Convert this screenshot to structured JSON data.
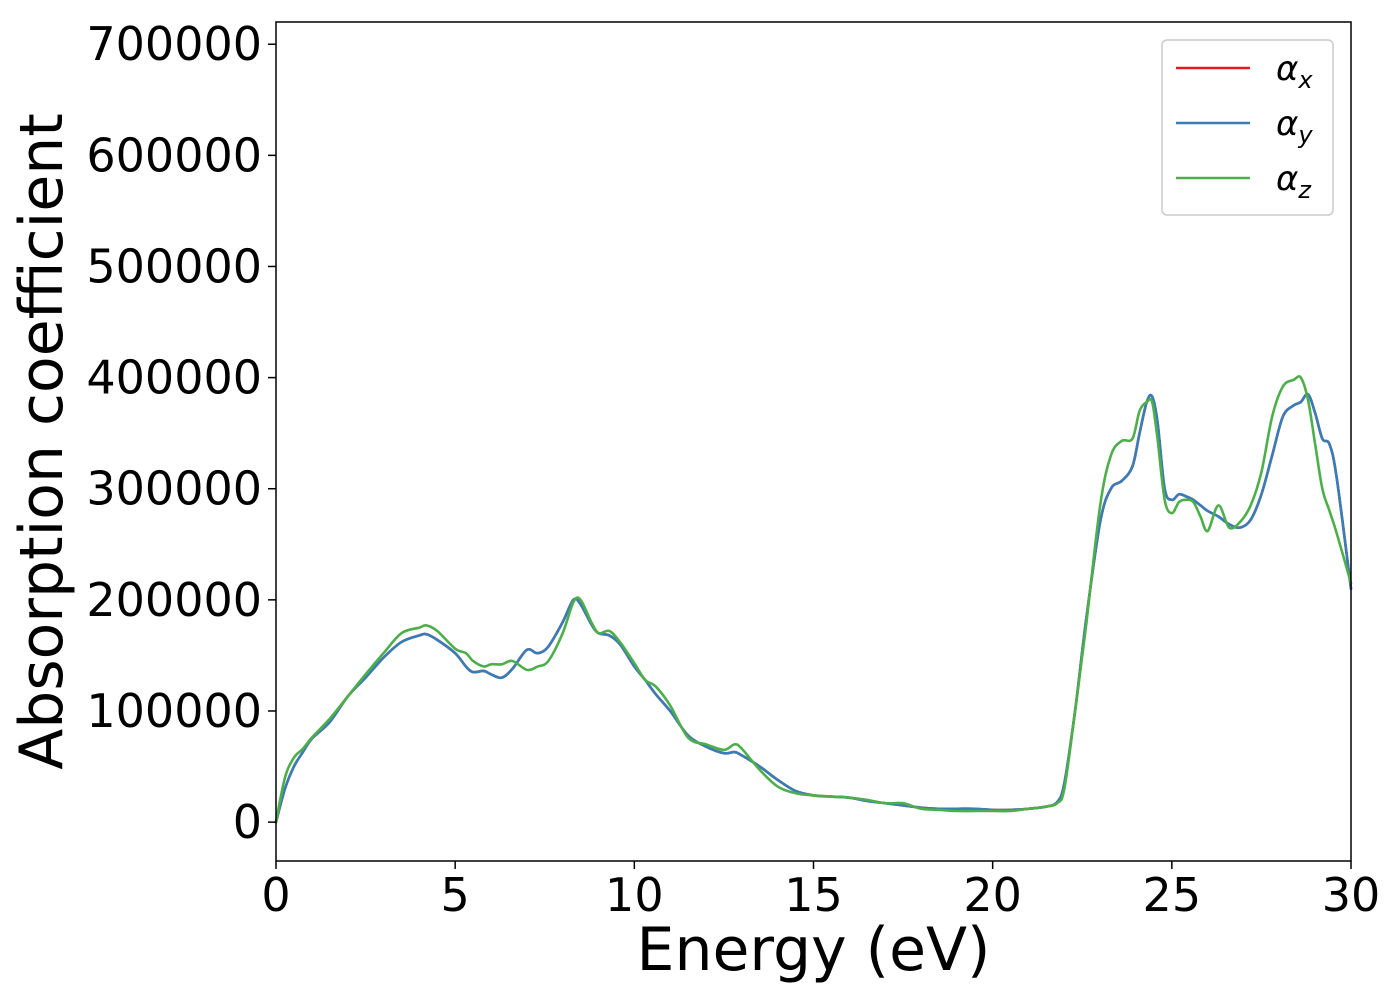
{
  "chart_data": {
    "type": "line",
    "title": "",
    "xlabel": "Energy (eV)",
    "ylabel": "Absorption coefficient",
    "xlim": [
      0,
      30
    ],
    "ylim": [
      -35000,
      720000
    ],
    "xticks": [
      0,
      5,
      10,
      15,
      20,
      25,
      30
    ],
    "yticks": [
      0,
      100000,
      200000,
      300000,
      400000,
      500000,
      600000,
      700000
    ],
    "xtick_labels": [
      "0",
      "5",
      "10",
      "15",
      "20",
      "25",
      "30"
    ],
    "ytick_labels": [
      "0",
      "100000",
      "200000",
      "300000",
      "400000",
      "500000",
      "600000",
      "700000"
    ],
    "grid": false,
    "legend_position": "top-right",
    "series": [
      {
        "name": "αx",
        "legend_symbol": "α",
        "legend_subscript": "x",
        "color": "#e41a1c",
        "x": [
          0,
          0.25,
          0.5,
          0.75,
          1,
          1.5,
          2,
          2.5,
          3,
          3.5,
          4,
          4.2,
          4.5,
          5,
          5.3,
          5.5,
          5.8,
          6,
          6.3,
          6.6,
          7,
          7.3,
          7.6,
          8,
          8.3,
          8.5,
          8.8,
          9,
          9.3,
          9.6,
          10,
          10.3,
          10.6,
          11,
          11.5,
          12,
          12.5,
          12.8,
          13,
          13.5,
          14,
          14.5,
          15,
          15.5,
          16,
          16.5,
          17,
          17.5,
          18,
          18.5,
          19,
          19.5,
          20,
          20.5,
          21,
          21.5,
          21.8,
          22,
          22.3,
          22.6,
          23,
          23.3,
          23.6,
          23.9,
          24.1,
          24.3,
          24.45,
          24.6,
          24.8,
          25,
          25.2,
          25.4,
          25.6,
          25.8,
          26,
          26.3,
          26.6,
          26.9,
          27.2,
          27.5,
          27.8,
          28.1,
          28.4,
          28.6,
          28.8,
          29,
          29.2,
          29.4,
          29.6,
          30
        ],
        "y": [
          0,
          30000,
          50000,
          63000,
          75000,
          90000,
          113000,
          130000,
          148000,
          162000,
          168000,
          169000,
          164000,
          152000,
          140000,
          135000,
          136000,
          133000,
          130000,
          138000,
          155000,
          152000,
          158000,
          180000,
          200000,
          196000,
          178000,
          170000,
          168000,
          160000,
          140000,
          128000,
          115000,
          100000,
          78000,
          68000,
          62000,
          63000,
          60000,
          50000,
          38000,
          28000,
          24000,
          23000,
          22000,
          19000,
          17000,
          15000,
          13000,
          12000,
          12000,
          12000,
          11000,
          11000,
          12000,
          14000,
          18000,
          35000,
          100000,
          180000,
          270000,
          300000,
          307000,
          320000,
          350000,
          378000,
          383000,
          360000,
          300000,
          290000,
          295000,
          293000,
          290000,
          285000,
          280000,
          275000,
          268000,
          265000,
          272000,
          295000,
          330000,
          365000,
          375000,
          378000,
          385000,
          368000,
          345000,
          340000,
          310000,
          210000
        ]
      },
      {
        "name": "αy",
        "legend_symbol": "α",
        "legend_subscript": "y",
        "color": "#377eb8",
        "x": [
          0,
          0.25,
          0.5,
          0.75,
          1,
          1.5,
          2,
          2.5,
          3,
          3.5,
          4,
          4.2,
          4.5,
          5,
          5.3,
          5.5,
          5.8,
          6,
          6.3,
          6.6,
          7,
          7.3,
          7.6,
          8,
          8.3,
          8.5,
          8.8,
          9,
          9.3,
          9.6,
          10,
          10.3,
          10.6,
          11,
          11.5,
          12,
          12.5,
          12.8,
          13,
          13.5,
          14,
          14.5,
          15,
          15.5,
          16,
          16.5,
          17,
          17.5,
          18,
          18.5,
          19,
          19.5,
          20,
          20.5,
          21,
          21.5,
          21.8,
          22,
          22.3,
          22.6,
          23,
          23.3,
          23.6,
          23.9,
          24.1,
          24.3,
          24.45,
          24.6,
          24.8,
          25,
          25.2,
          25.4,
          25.6,
          25.8,
          26,
          26.3,
          26.6,
          26.9,
          27.2,
          27.5,
          27.8,
          28.1,
          28.4,
          28.6,
          28.8,
          29,
          29.2,
          29.4,
          29.6,
          30
        ],
        "y": [
          0,
          30000,
          50000,
          63000,
          75000,
          90000,
          113000,
          130000,
          148000,
          162000,
          168000,
          169000,
          164000,
          152000,
          140000,
          135000,
          136000,
          133000,
          130000,
          138000,
          155000,
          152000,
          158000,
          180000,
          200000,
          196000,
          178000,
          170000,
          168000,
          160000,
          140000,
          128000,
          115000,
          100000,
          78000,
          68000,
          62000,
          63000,
          60000,
          50000,
          38000,
          28000,
          24000,
          23000,
          22000,
          19000,
          17000,
          15000,
          13000,
          12000,
          12000,
          12000,
          11000,
          11000,
          12000,
          14000,
          18000,
          35000,
          100000,
          180000,
          270000,
          300000,
          307000,
          320000,
          350000,
          378000,
          383000,
          360000,
          300000,
          290000,
          295000,
          293000,
          290000,
          285000,
          280000,
          275000,
          268000,
          265000,
          272000,
          295000,
          330000,
          365000,
          375000,
          378000,
          385000,
          368000,
          345000,
          340000,
          310000,
          210000
        ]
      },
      {
        "name": "αz",
        "legend_symbol": "α",
        "legend_subscript": "z",
        "color": "#4daf4a",
        "x": [
          0,
          0.25,
          0.5,
          0.75,
          1,
          1.5,
          2,
          2.5,
          3,
          3.5,
          4,
          4.2,
          4.5,
          5,
          5.3,
          5.5,
          5.8,
          6,
          6.3,
          6.6,
          7,
          7.3,
          7.6,
          8,
          8.3,
          8.5,
          8.8,
          9,
          9.3,
          9.6,
          10,
          10.3,
          10.6,
          11,
          11.5,
          12,
          12.5,
          12.8,
          13,
          13.5,
          14,
          14.5,
          15,
          15.5,
          16,
          16.5,
          17,
          17.5,
          18,
          18.5,
          19,
          19.5,
          20,
          20.5,
          21,
          21.5,
          21.8,
          22,
          22.3,
          22.6,
          23,
          23.3,
          23.6,
          23.9,
          24.1,
          24.3,
          24.45,
          24.6,
          24.8,
          25,
          25.2,
          25.4,
          25.6,
          25.8,
          26,
          26.3,
          26.6,
          26.9,
          27.2,
          27.5,
          27.8,
          28.1,
          28.4,
          28.6,
          28.8,
          29,
          29.2,
          29.4,
          29.6,
          30
        ],
        "y": [
          0,
          40000,
          58000,
          66000,
          76000,
          93000,
          113000,
          133000,
          152000,
          170000,
          175000,
          177000,
          172000,
          156000,
          152000,
          145000,
          140000,
          142000,
          142000,
          145000,
          137000,
          140000,
          145000,
          170000,
          198000,
          200000,
          180000,
          170000,
          172000,
          162000,
          143000,
          128000,
          122000,
          105000,
          76000,
          70000,
          65000,
          70000,
          66000,
          47000,
          32000,
          26000,
          24000,
          23000,
          22000,
          20000,
          17000,
          17000,
          12000,
          11000,
          10000,
          10000,
          10000,
          10000,
          12000,
          14000,
          17000,
          30000,
          100000,
          175000,
          285000,
          330000,
          343000,
          345000,
          370000,
          378000,
          378000,
          345000,
          290000,
          278000,
          288000,
          290000,
          288000,
          275000,
          262000,
          285000,
          265000,
          270000,
          285000,
          315000,
          365000,
          392000,
          398000,
          400000,
          380000,
          340000,
          300000,
          280000,
          260000,
          215000
        ]
      }
    ]
  }
}
